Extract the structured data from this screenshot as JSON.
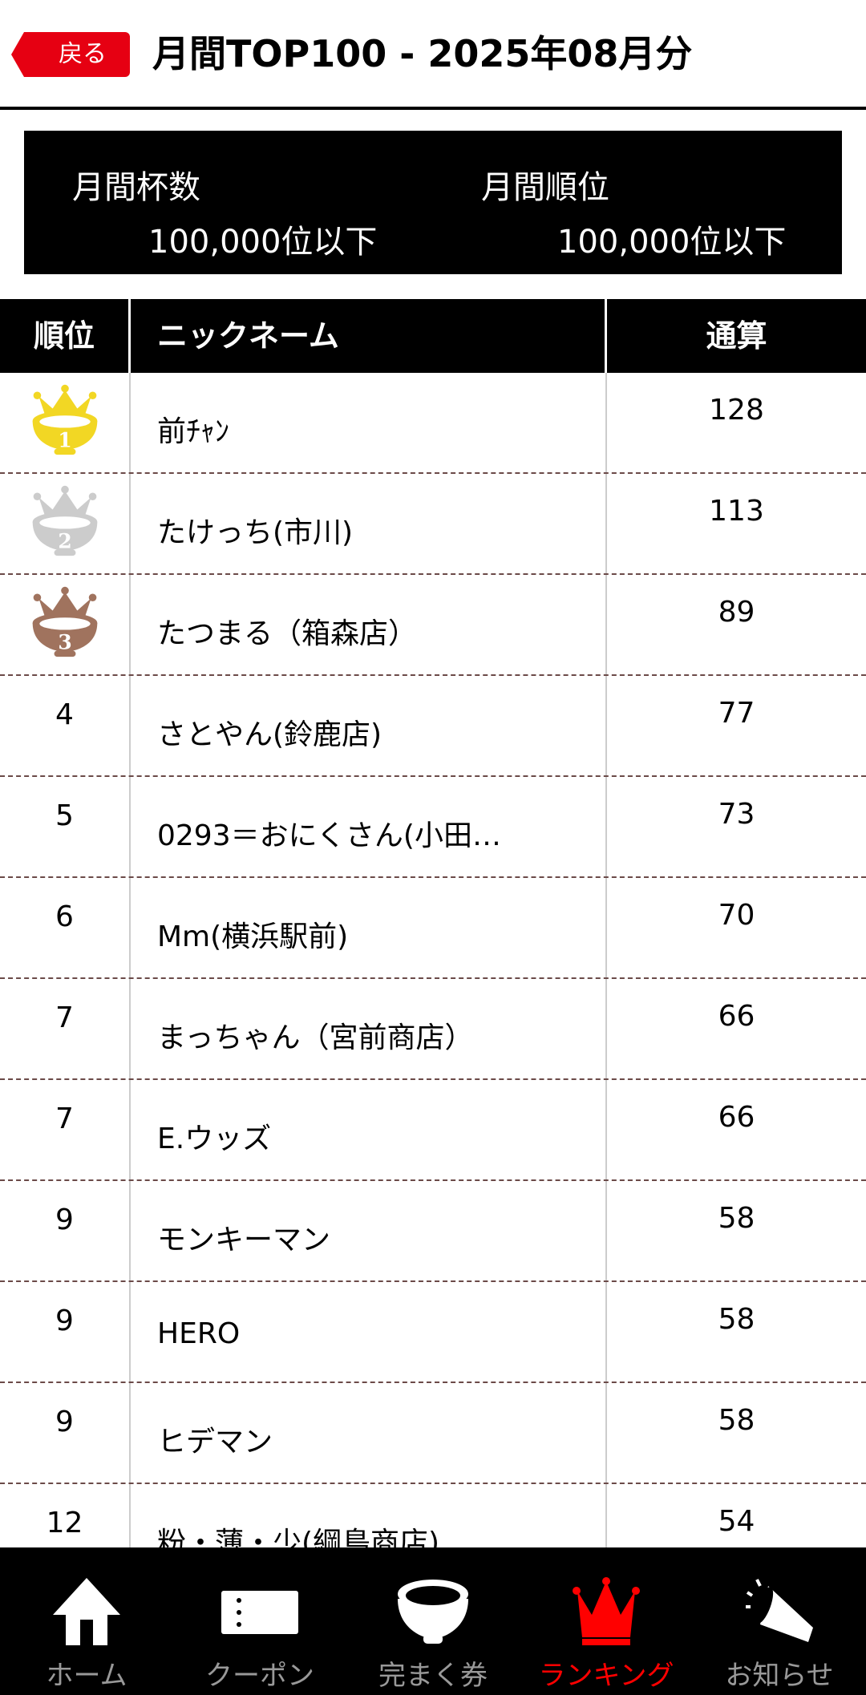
{
  "header": {
    "back_label": "戻る",
    "title": "月間TOP100 - 2025年08月分"
  },
  "stats": {
    "cups_label": "月間杯数",
    "cups_value": "100,000位以下",
    "rank_label": "月間順位",
    "rank_value": "100,000位以下"
  },
  "table": {
    "headers": [
      "順位",
      "ニックネーム",
      "通算"
    ],
    "medal_colors": [
      "#f2d724",
      "#cccccc",
      "#a0735e"
    ],
    "rows": [
      {
        "rank": "1",
        "name": "前ﾁｬﾝ",
        "total": "128",
        "medal": "gold-crown-bowl-icon"
      },
      {
        "rank": "2",
        "name": "たけっち(市川)",
        "total": "113",
        "medal": "silver-crown-bowl-icon"
      },
      {
        "rank": "3",
        "name": "たつまる（箱森店）",
        "total": "89",
        "medal": "bronze-crown-bowl-icon"
      },
      {
        "rank": "4",
        "name": "さとやん(鈴鹿店)",
        "total": "77"
      },
      {
        "rank": "5",
        "name": "0293＝おにくさん(小田…",
        "total": "73"
      },
      {
        "rank": "6",
        "name": "Mm(横浜駅前)",
        "total": "70"
      },
      {
        "rank": "7",
        "name": "まっちゃん（宮前商店）",
        "total": "66"
      },
      {
        "rank": "7",
        "name": "E.ウッズ",
        "total": "66"
      },
      {
        "rank": "9",
        "name": "モンキーマン",
        "total": "58"
      },
      {
        "rank": "9",
        "name": "HERO",
        "total": "58"
      },
      {
        "rank": "9",
        "name": "ヒデマン",
        "total": "58"
      },
      {
        "rank": "12",
        "name": "粉・薄・少(綱島商店)",
        "total": "54"
      }
    ]
  },
  "nav": {
    "active_color": "#ff0000",
    "items": [
      {
        "label": "ホーム",
        "icon": "home-icon"
      },
      {
        "label": "クーポン",
        "icon": "ticket-icon"
      },
      {
        "label": "完まく券",
        "icon": "bowl-icon"
      },
      {
        "label": "ランキング",
        "icon": "crown-icon",
        "active": true
      },
      {
        "label": "お知らせ",
        "icon": "megaphone-icon"
      }
    ]
  }
}
